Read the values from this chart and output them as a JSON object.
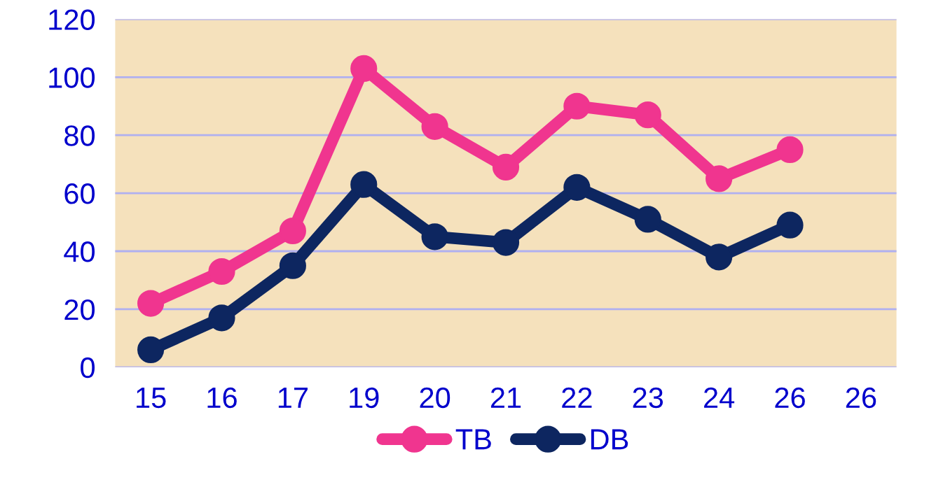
{
  "chart_data": {
    "type": "line",
    "categories": [
      "15",
      "16",
      "17",
      "19",
      "20",
      "21",
      "22",
      "23",
      "24",
      "26",
      "26"
    ],
    "series": [
      {
        "name": "TB",
        "color": "#f0358f",
        "values": [
          22,
          33,
          47,
          103,
          83,
          69,
          90,
          87,
          65,
          75,
          null
        ]
      },
      {
        "name": "DB",
        "color": "#0d2660",
        "values": [
          6,
          17,
          35,
          63,
          45,
          43,
          62,
          51,
          38,
          49,
          null
        ]
      }
    ],
    "ylim": [
      0,
      120
    ],
    "yticks": [
      0,
      20,
      40,
      60,
      80,
      100,
      120
    ],
    "grid": "y",
    "legend": "bottom",
    "marker": "circle",
    "line_style": "solid"
  }
}
